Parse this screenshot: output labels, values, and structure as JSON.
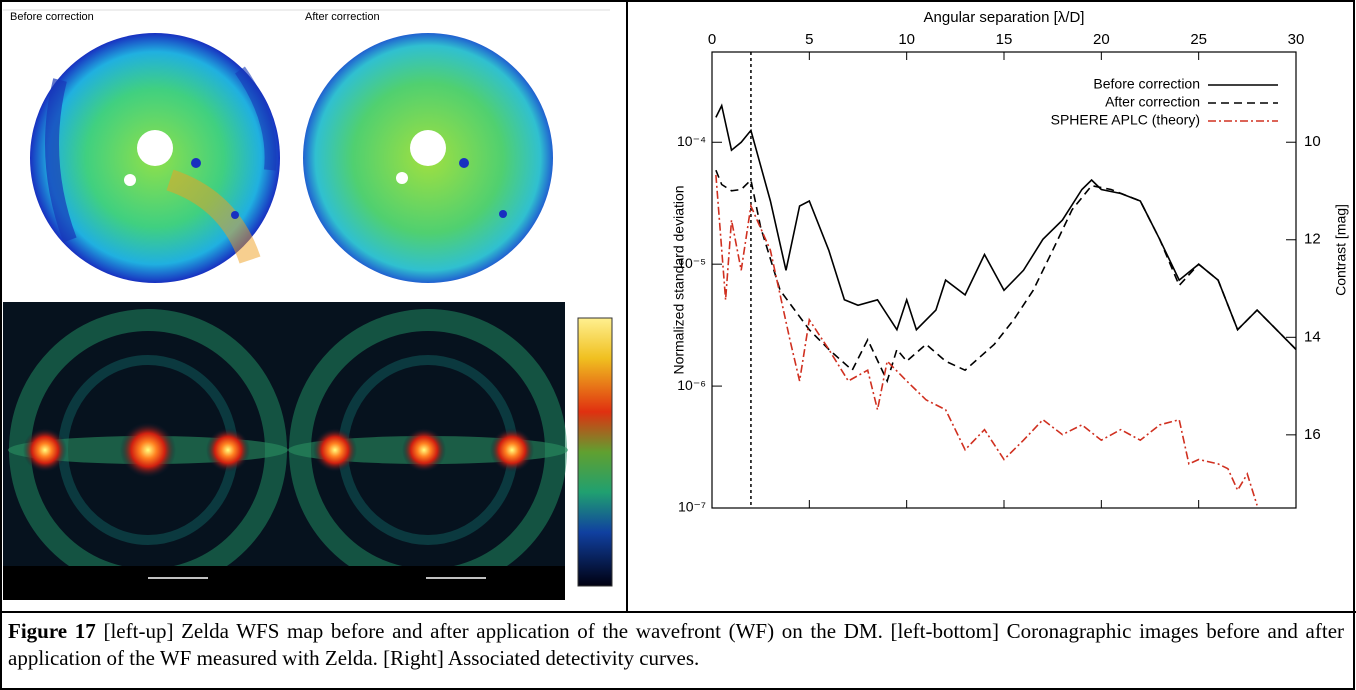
{
  "figure": {
    "panels": {
      "before_label": "Before correction",
      "after_label": "After correction"
    },
    "caption": {
      "label": "Figure 17",
      "text": "[left-up] Zelda WFS map before and after application of the wavefront (WF) on the DM. [left-bottom] Coronagraphic images before and after application of the WF measured with Zelda. [Right] Associated detectivity curves."
    }
  },
  "chart_data": {
    "type": "line",
    "x_label": "Angular separation [λ/D]",
    "y_label": "Normalized standard deviation",
    "y2_label": "Contrast [mag]",
    "xlim": [
      0,
      30
    ],
    "xticks": [
      0,
      5,
      10,
      15,
      20,
      25,
      30
    ],
    "ylim": [
      1e-07,
      0.00055
    ],
    "log_y": true,
    "yticks": [
      {
        "value": 1e-07,
        "label": "10⁻⁷"
      },
      {
        "value": 1e-06,
        "label": "10⁻⁶"
      },
      {
        "value": 1e-05,
        "label": "10⁻⁵"
      },
      {
        "value": 0.0001,
        "label": "10⁻⁴"
      }
    ],
    "y2lim": [
      17.5,
      8.15
    ],
    "y2ticks": [
      10,
      12,
      14,
      16
    ],
    "vline": 2,
    "legend": "upper right",
    "series": [
      {
        "name": "Before correction",
        "color": "#000000",
        "line_style": "solid",
        "x": [
          0.2,
          0.5,
          1,
          1.5,
          2,
          3,
          3.8,
          4.5,
          5,
          6,
          6.8,
          7.5,
          8.5,
          9.5,
          10,
          10.5,
          11.5,
          12,
          13,
          14,
          15,
          16,
          17,
          18,
          19,
          19.5,
          20,
          21,
          22,
          23,
          24,
          25,
          26,
          27,
          28,
          29,
          30
        ],
        "values": [
          0.00016,
          0.0002,
          8.6e-05,
          0.0001,
          0.000125,
          3.3e-05,
          8.9e-06,
          3e-05,
          3.3e-05,
          1.3e-05,
          5.1e-06,
          4.6e-06,
          5.1e-06,
          2.9e-06,
          5.1e-06,
          2.9e-06,
          4.2e-06,
          7.4e-06,
          5.6e-06,
          1.2e-05,
          6.1e-06,
          8.9e-06,
          1.6e-05,
          2.3e-05,
          4.1e-05,
          4.9e-05,
          4.1e-05,
          3.8e-05,
          3.3e-05,
          1.6e-05,
          7.4e-06,
          1e-05,
          7.4e-06,
          2.9e-06,
          4.2e-06,
          2.9e-06,
          2e-06
        ]
      },
      {
        "name": "After correction",
        "color": "#000000",
        "line_style": "dashed",
        "x": [
          0.2,
          0.5,
          1,
          1.5,
          2,
          2.5,
          3.5,
          5,
          6,
          7.2,
          8,
          9,
          9.5,
          10,
          11,
          12,
          13,
          14.5,
          15.5,
          16.5,
          17.5,
          18.5,
          19.5,
          20.5,
          22,
          23,
          24,
          25,
          26,
          27,
          28,
          29,
          30
        ],
        "values": [
          5.9e-05,
          4.5e-05,
          4e-05,
          4.1e-05,
          4.9e-05,
          2e-05,
          6.1e-06,
          2.9e-06,
          2e-06,
          1.35e-06,
          2.4e-06,
          1.1e-06,
          2e-06,
          1.6e-06,
          2.2e-06,
          1.6e-06,
          1.35e-06,
          2.2e-06,
          3.5e-06,
          6.1e-06,
          1.3e-05,
          2.8e-05,
          4.4e-05,
          4.1e-05,
          3.3e-05,
          1.6e-05,
          6.7e-06,
          1e-05,
          7.4e-06,
          2.9e-06,
          4.2e-06,
          2.9e-06,
          2e-06
        ]
      },
      {
        "name": "SPHERE APLC (theory)",
        "color": "#d03020",
        "line_style": "dashdot",
        "x": [
          0.2,
          0.7,
          1,
          1.5,
          2,
          3,
          4,
          4.5,
          5,
          6,
          7,
          8,
          8.5,
          9,
          10,
          11,
          12,
          13,
          14,
          15,
          16,
          17,
          18,
          19,
          20,
          21,
          22,
          23,
          24,
          24.5,
          25,
          26,
          26.5,
          27,
          27.5,
          28
        ],
        "values": [
          5.4e-05,
          5.1e-06,
          2.3e-05,
          8.9e-06,
          3e-05,
          1.3e-05,
          2.4e-06,
          1.1e-06,
          3.5e-06,
          2e-06,
          1.1e-06,
          1.35e-06,
          6.4e-07,
          1.6e-06,
          1.1e-06,
          7.7e-07,
          6.4e-07,
          3e-07,
          4.4e-07,
          2.5e-07,
          3.6e-07,
          5.3e-07,
          4e-07,
          4.8e-07,
          3.6e-07,
          4.4e-07,
          3.6e-07,
          4.8e-07,
          5.3e-07,
          2.3e-07,
          2.5e-07,
          2.3e-07,
          2.1e-07,
          1.4e-07,
          1.9e-07,
          1.05e-07
        ]
      }
    ]
  }
}
